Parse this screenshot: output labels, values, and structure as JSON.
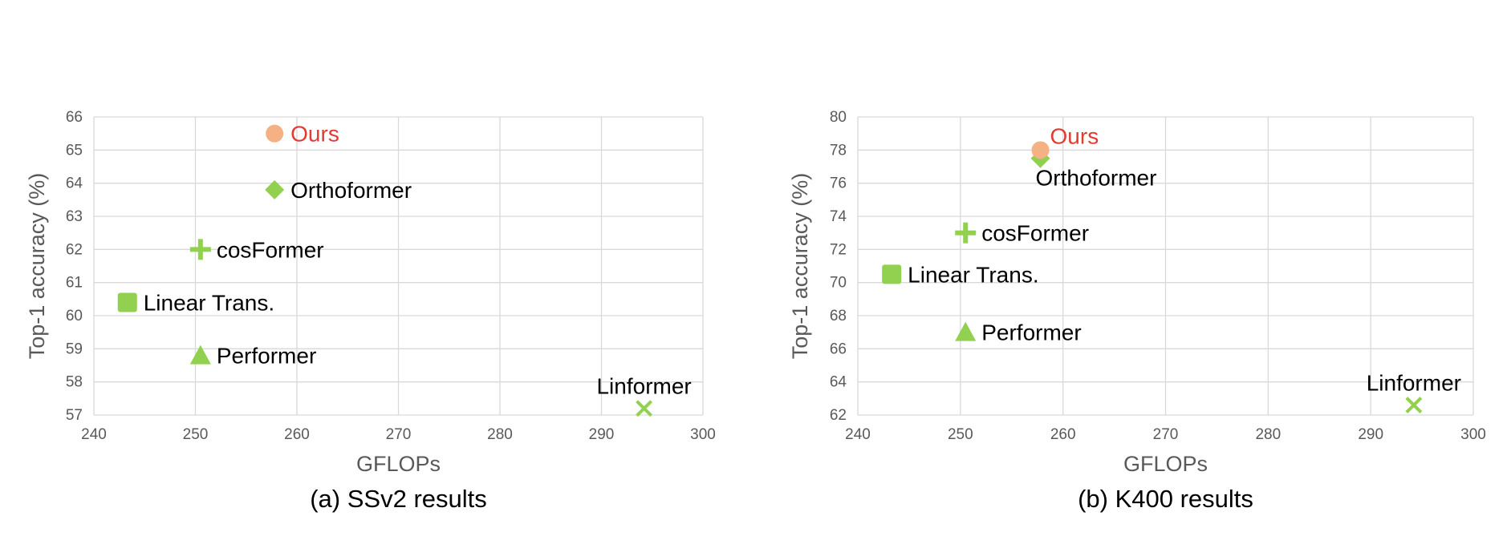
{
  "colors": {
    "grid": "#d9d9d9",
    "marker_green": "#92d050",
    "marker_ours": "#f4b183",
    "label_ours": "#e03c31",
    "label_default": "#000000",
    "axis_text": "#595959"
  },
  "chart_data": [
    {
      "type": "scatter",
      "caption": "(a) SSv2 results",
      "xlabel": "GFLOPs",
      "ylabel": "Top-1 accuracy (%)",
      "xlim": [
        240,
        300
      ],
      "ylim": [
        57,
        66
      ],
      "xticks": [
        240,
        250,
        260,
        270,
        280,
        290,
        300
      ],
      "yticks": [
        57,
        58,
        59,
        60,
        61,
        62,
        63,
        64,
        65,
        66
      ],
      "grid": true,
      "legend": "none",
      "points": [
        {
          "name": "Ours",
          "x": 257.8,
          "y": 65.5,
          "marker": "circle-icon",
          "color": "#f4b183",
          "label_color": "#e03c31",
          "label_pos": "right"
        },
        {
          "name": "Orthoformer",
          "x": 257.8,
          "y": 63.8,
          "marker": "diamond-icon",
          "color": "#92d050",
          "label_color": "#000000",
          "label_pos": "right"
        },
        {
          "name": "cosFormer",
          "x": 250.5,
          "y": 62.0,
          "marker": "plus-icon",
          "color": "#92d050",
          "label_color": "#000000",
          "label_pos": "right"
        },
        {
          "name": "Linear Trans.",
          "x": 243.3,
          "y": 60.4,
          "marker": "square-icon",
          "color": "#92d050",
          "label_color": "#000000",
          "label_pos": "right"
        },
        {
          "name": "Performer",
          "x": 250.5,
          "y": 58.8,
          "marker": "triangle-icon",
          "color": "#92d050",
          "label_color": "#000000",
          "label_pos": "right"
        },
        {
          "name": "Linformer",
          "x": 294.2,
          "y": 57.2,
          "marker": "x-icon",
          "color": "#92d050",
          "label_color": "#000000",
          "label_pos": "above"
        }
      ]
    },
    {
      "type": "scatter",
      "caption": "(b) K400 results",
      "xlabel": "GFLOPs",
      "ylabel": "Top-1 accuracy (%)",
      "xlim": [
        240,
        300
      ],
      "ylim": [
        62,
        80
      ],
      "xticks": [
        240,
        250,
        260,
        270,
        280,
        290,
        300
      ],
      "yticks": [
        62,
        64,
        66,
        68,
        70,
        72,
        74,
        76,
        78,
        80
      ],
      "grid": true,
      "legend": "none",
      "points": [
        {
          "name": "Orthoformer",
          "x": 257.8,
          "y": 77.5,
          "marker": "diamond-icon",
          "color": "#92d050",
          "label_color": "#000000",
          "label_pos": "below"
        },
        {
          "name": "Ours",
          "x": 257.8,
          "y": 78.0,
          "marker": "circle-icon",
          "color": "#f4b183",
          "label_color": "#e03c31",
          "label_pos": "above-right"
        },
        {
          "name": "cosFormer",
          "x": 250.5,
          "y": 73.0,
          "marker": "plus-icon",
          "color": "#92d050",
          "label_color": "#000000",
          "label_pos": "right"
        },
        {
          "name": "Linear Trans.",
          "x": 243.3,
          "y": 70.5,
          "marker": "square-icon",
          "color": "#92d050",
          "label_color": "#000000",
          "label_pos": "right"
        },
        {
          "name": "Performer",
          "x": 250.5,
          "y": 67.0,
          "marker": "triangle-icon",
          "color": "#92d050",
          "label_color": "#000000",
          "label_pos": "right"
        },
        {
          "name": "Linformer",
          "x": 294.2,
          "y": 62.6,
          "marker": "x-icon",
          "color": "#92d050",
          "label_color": "#000000",
          "label_pos": "above"
        }
      ]
    }
  ]
}
